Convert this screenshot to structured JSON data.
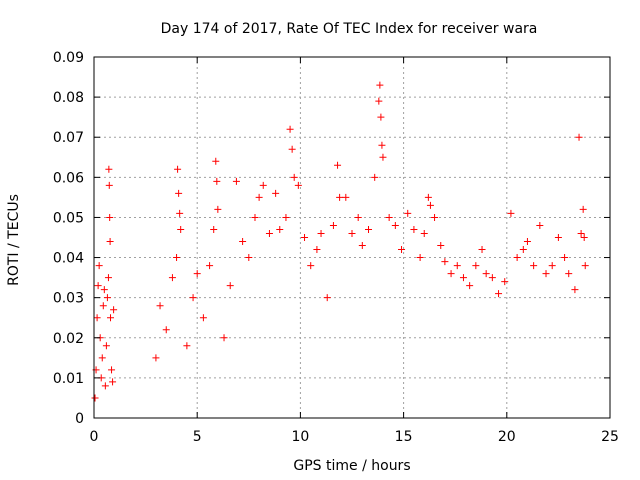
{
  "chart_data": {
    "type": "scatter",
    "title": "Day 174 of 2017, Rate Of TEC Index for receiver wara",
    "xlabel": "GPS time / hours",
    "ylabel": "ROTI / TECUs",
    "xlim": [
      0,
      25
    ],
    "ylim": [
      0,
      0.09
    ],
    "x_ticks": [
      "0",
      "5",
      "10",
      "15",
      "20",
      "25"
    ],
    "y_ticks": [
      "0",
      "0.01",
      "0.02",
      "0.03",
      "0.04",
      "0.05",
      "0.06",
      "0.07",
      "0.08",
      "0.09"
    ],
    "grid": true,
    "marker": "+",
    "color": "#ff0000",
    "series": [
      {
        "name": "",
        "points": [
          [
            0.05,
            0.005
          ],
          [
            0.1,
            0.012
          ],
          [
            0.15,
            0.025
          ],
          [
            0.2,
            0.033
          ],
          [
            0.25,
            0.038
          ],
          [
            0.3,
            0.02
          ],
          [
            0.35,
            0.01
          ],
          [
            0.4,
            0.015
          ],
          [
            0.45,
            0.028
          ],
          [
            0.5,
            0.032
          ],
          [
            0.55,
            0.008
          ],
          [
            0.6,
            0.018
          ],
          [
            0.65,
            0.03
          ],
          [
            0.7,
            0.035
          ],
          [
            0.72,
            0.062
          ],
          [
            0.74,
            0.058
          ],
          [
            0.76,
            0.05
          ],
          [
            0.78,
            0.044
          ],
          [
            0.8,
            0.025
          ],
          [
            0.85,
            0.012
          ],
          [
            0.9,
            0.009
          ],
          [
            0.95,
            0.027
          ],
          [
            3.0,
            0.015
          ],
          [
            3.2,
            0.028
          ],
          [
            3.5,
            0.022
          ],
          [
            3.8,
            0.035
          ],
          [
            4.0,
            0.04
          ],
          [
            4.05,
            0.062
          ],
          [
            4.1,
            0.056
          ],
          [
            4.15,
            0.051
          ],
          [
            4.2,
            0.047
          ],
          [
            4.5,
            0.018
          ],
          [
            4.8,
            0.03
          ],
          [
            5.0,
            0.036
          ],
          [
            5.3,
            0.025
          ],
          [
            5.6,
            0.038
          ],
          [
            5.8,
            0.047
          ],
          [
            5.9,
            0.064
          ],
          [
            5.95,
            0.059
          ],
          [
            6.0,
            0.052
          ],
          [
            6.3,
            0.02
          ],
          [
            6.6,
            0.033
          ],
          [
            6.9,
            0.059
          ],
          [
            7.2,
            0.044
          ],
          [
            7.5,
            0.04
          ],
          [
            7.8,
            0.05
          ],
          [
            8.0,
            0.055
          ],
          [
            8.2,
            0.058
          ],
          [
            8.5,
            0.046
          ],
          [
            8.8,
            0.056
          ],
          [
            9.0,
            0.047
          ],
          [
            9.3,
            0.05
          ],
          [
            9.5,
            0.072
          ],
          [
            9.6,
            0.067
          ],
          [
            9.7,
            0.06
          ],
          [
            9.9,
            0.058
          ],
          [
            10.2,
            0.045
          ],
          [
            10.5,
            0.038
          ],
          [
            10.8,
            0.042
          ],
          [
            11.0,
            0.046
          ],
          [
            11.3,
            0.03
          ],
          [
            11.6,
            0.048
          ],
          [
            11.8,
            0.063
          ],
          [
            11.9,
            0.055
          ],
          [
            12.2,
            0.055
          ],
          [
            12.5,
            0.046
          ],
          [
            12.8,
            0.05
          ],
          [
            13.0,
            0.043
          ],
          [
            13.3,
            0.047
          ],
          [
            13.6,
            0.06
          ],
          [
            13.8,
            0.079
          ],
          [
            13.85,
            0.083
          ],
          [
            13.9,
            0.075
          ],
          [
            13.95,
            0.068
          ],
          [
            14.0,
            0.065
          ],
          [
            14.3,
            0.05
          ],
          [
            14.6,
            0.048
          ],
          [
            14.9,
            0.042
          ],
          [
            15.2,
            0.051
          ],
          [
            15.5,
            0.047
          ],
          [
            15.8,
            0.04
          ],
          [
            16.0,
            0.046
          ],
          [
            16.2,
            0.055
          ],
          [
            16.3,
            0.053
          ],
          [
            16.5,
            0.05
          ],
          [
            16.8,
            0.043
          ],
          [
            17.0,
            0.039
          ],
          [
            17.3,
            0.036
          ],
          [
            17.6,
            0.038
          ],
          [
            17.9,
            0.035
          ],
          [
            18.2,
            0.033
          ],
          [
            18.5,
            0.038
          ],
          [
            18.8,
            0.042
          ],
          [
            19.0,
            0.036
          ],
          [
            19.3,
            0.035
          ],
          [
            19.6,
            0.031
          ],
          [
            19.9,
            0.034
          ],
          [
            20.2,
            0.051
          ],
          [
            20.5,
            0.04
          ],
          [
            20.8,
            0.042
          ],
          [
            21.0,
            0.044
          ],
          [
            21.3,
            0.038
          ],
          [
            21.6,
            0.048
          ],
          [
            21.9,
            0.036
          ],
          [
            22.2,
            0.038
          ],
          [
            22.5,
            0.045
          ],
          [
            22.8,
            0.04
          ],
          [
            23.0,
            0.036
          ],
          [
            23.3,
            0.032
          ],
          [
            23.5,
            0.07
          ],
          [
            23.6,
            0.046
          ],
          [
            23.7,
            0.052
          ],
          [
            23.75,
            0.045
          ],
          [
            23.8,
            0.038
          ]
        ]
      }
    ]
  }
}
